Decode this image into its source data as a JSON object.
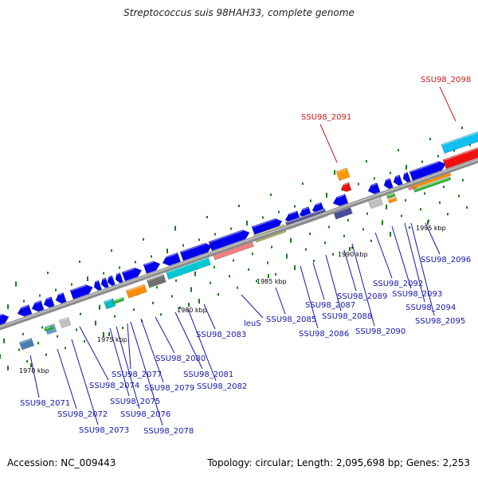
{
  "title": "Streptococcus suis 98HAH33, complete genome",
  "footer": {
    "accession": "Accession: NC_009443",
    "summary": "Topology: circular; Length: 2,095,698 bp; Genes: 2,253"
  },
  "colors": {
    "backbone": "#909090",
    "cds": "#0000ee",
    "label": "#1515b0",
    "label_highlight": "#cc1a1a",
    "tick": "#1a7a1a"
  },
  "scale_labels": [
    "1970 kbp",
    "1975 kbp",
    "1980 kbp",
    "1985 kbp",
    "1990 kbp",
    "1995 kbp"
  ],
  "gene_labels": [
    {
      "text": "SSU98_2071",
      "highlight": false
    },
    {
      "text": "SSU98_2072",
      "highlight": false
    },
    {
      "text": "SSU98_2073",
      "highlight": false
    },
    {
      "text": "SSU98_2074",
      "highlight": false
    },
    {
      "text": "SSU98_2075",
      "highlight": false
    },
    {
      "text": "SSU98_2076",
      "highlight": false
    },
    {
      "text": "SSU98_2077",
      "highlight": false
    },
    {
      "text": "SSU98_2078",
      "highlight": false
    },
    {
      "text": "SSU98_2079",
      "highlight": false
    },
    {
      "text": "SSU98_2080",
      "highlight": false
    },
    {
      "text": "SSU98_2081",
      "highlight": false
    },
    {
      "text": "SSU98_2082",
      "highlight": false
    },
    {
      "text": "SSU98_2083",
      "highlight": false
    },
    {
      "text": "leuS",
      "highlight": false
    },
    {
      "text": "SSU98_2085",
      "highlight": false
    },
    {
      "text": "SSU98_2086",
      "highlight": false
    },
    {
      "text": "SSU98_2087",
      "highlight": false
    },
    {
      "text": "SSU98_2088",
      "highlight": false
    },
    {
      "text": "SSU98_2089",
      "highlight": false
    },
    {
      "text": "SSU98_2090",
      "highlight": false
    },
    {
      "text": "SSU98_2091",
      "highlight": true
    },
    {
      "text": "SSU98_2092",
      "highlight": false
    },
    {
      "text": "SSU98_2093",
      "highlight": false
    },
    {
      "text": "SSU98_2094",
      "highlight": false
    },
    {
      "text": "SSU98_2095",
      "highlight": false
    },
    {
      "text": "SSU98_2096",
      "highlight": false
    },
    {
      "text": "SSU98_2098",
      "highlight": true
    }
  ]
}
